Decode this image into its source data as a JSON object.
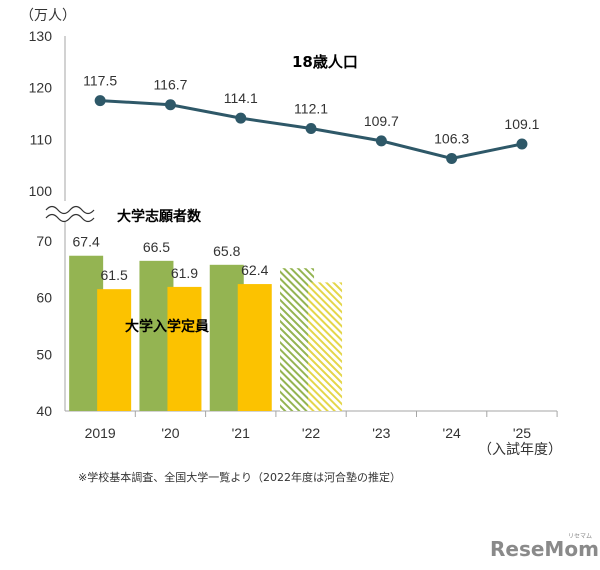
{
  "chart_data": {
    "type": "bar+line",
    "y_unit": "（万人）",
    "y_lower_ticks": [
      40,
      50,
      60,
      70
    ],
    "y_upper_ticks": [
      100,
      110,
      120,
      130
    ],
    "y_lower_range": [
      40,
      70
    ],
    "y_upper_range": [
      100,
      130
    ],
    "categories": [
      "2019",
      "'20",
      "'21",
      "'22",
      "'23",
      "'24",
      "'25"
    ],
    "x_extra_label": "（入試年度）",
    "line_series": {
      "name": "18歳人口",
      "values": [
        117.5,
        116.7,
        114.1,
        112.1,
        109.7,
        106.3,
        109.1
      ],
      "labels": [
        "117.5",
        "116.7",
        "114.1",
        "112.1",
        "109.7",
        "106.3",
        "109.1"
      ],
      "color": "#2e5868"
    },
    "bar_series": [
      {
        "name": "大学志願者数",
        "values": [
          67.4,
          66.5,
          65.8,
          65.2
        ],
        "labels": [
          "67.4",
          "66.5",
          "65.8",
          ""
        ],
        "estimated_from_index": 3,
        "color": "#94b452"
      },
      {
        "name": "大学入学定員",
        "values": [
          61.5,
          61.9,
          62.4,
          62.7
        ],
        "labels": [
          "61.5",
          "61.9",
          "62.4",
          ""
        ],
        "estimated_from_index": 3,
        "color": "#fcc200"
      }
    ],
    "footnote": "※学校基本調査、全国大学一覧より（2022年度は河合塾の推定）",
    "grid": false
  },
  "watermark": {
    "main": "ReseMom",
    "small": "リセマム"
  }
}
